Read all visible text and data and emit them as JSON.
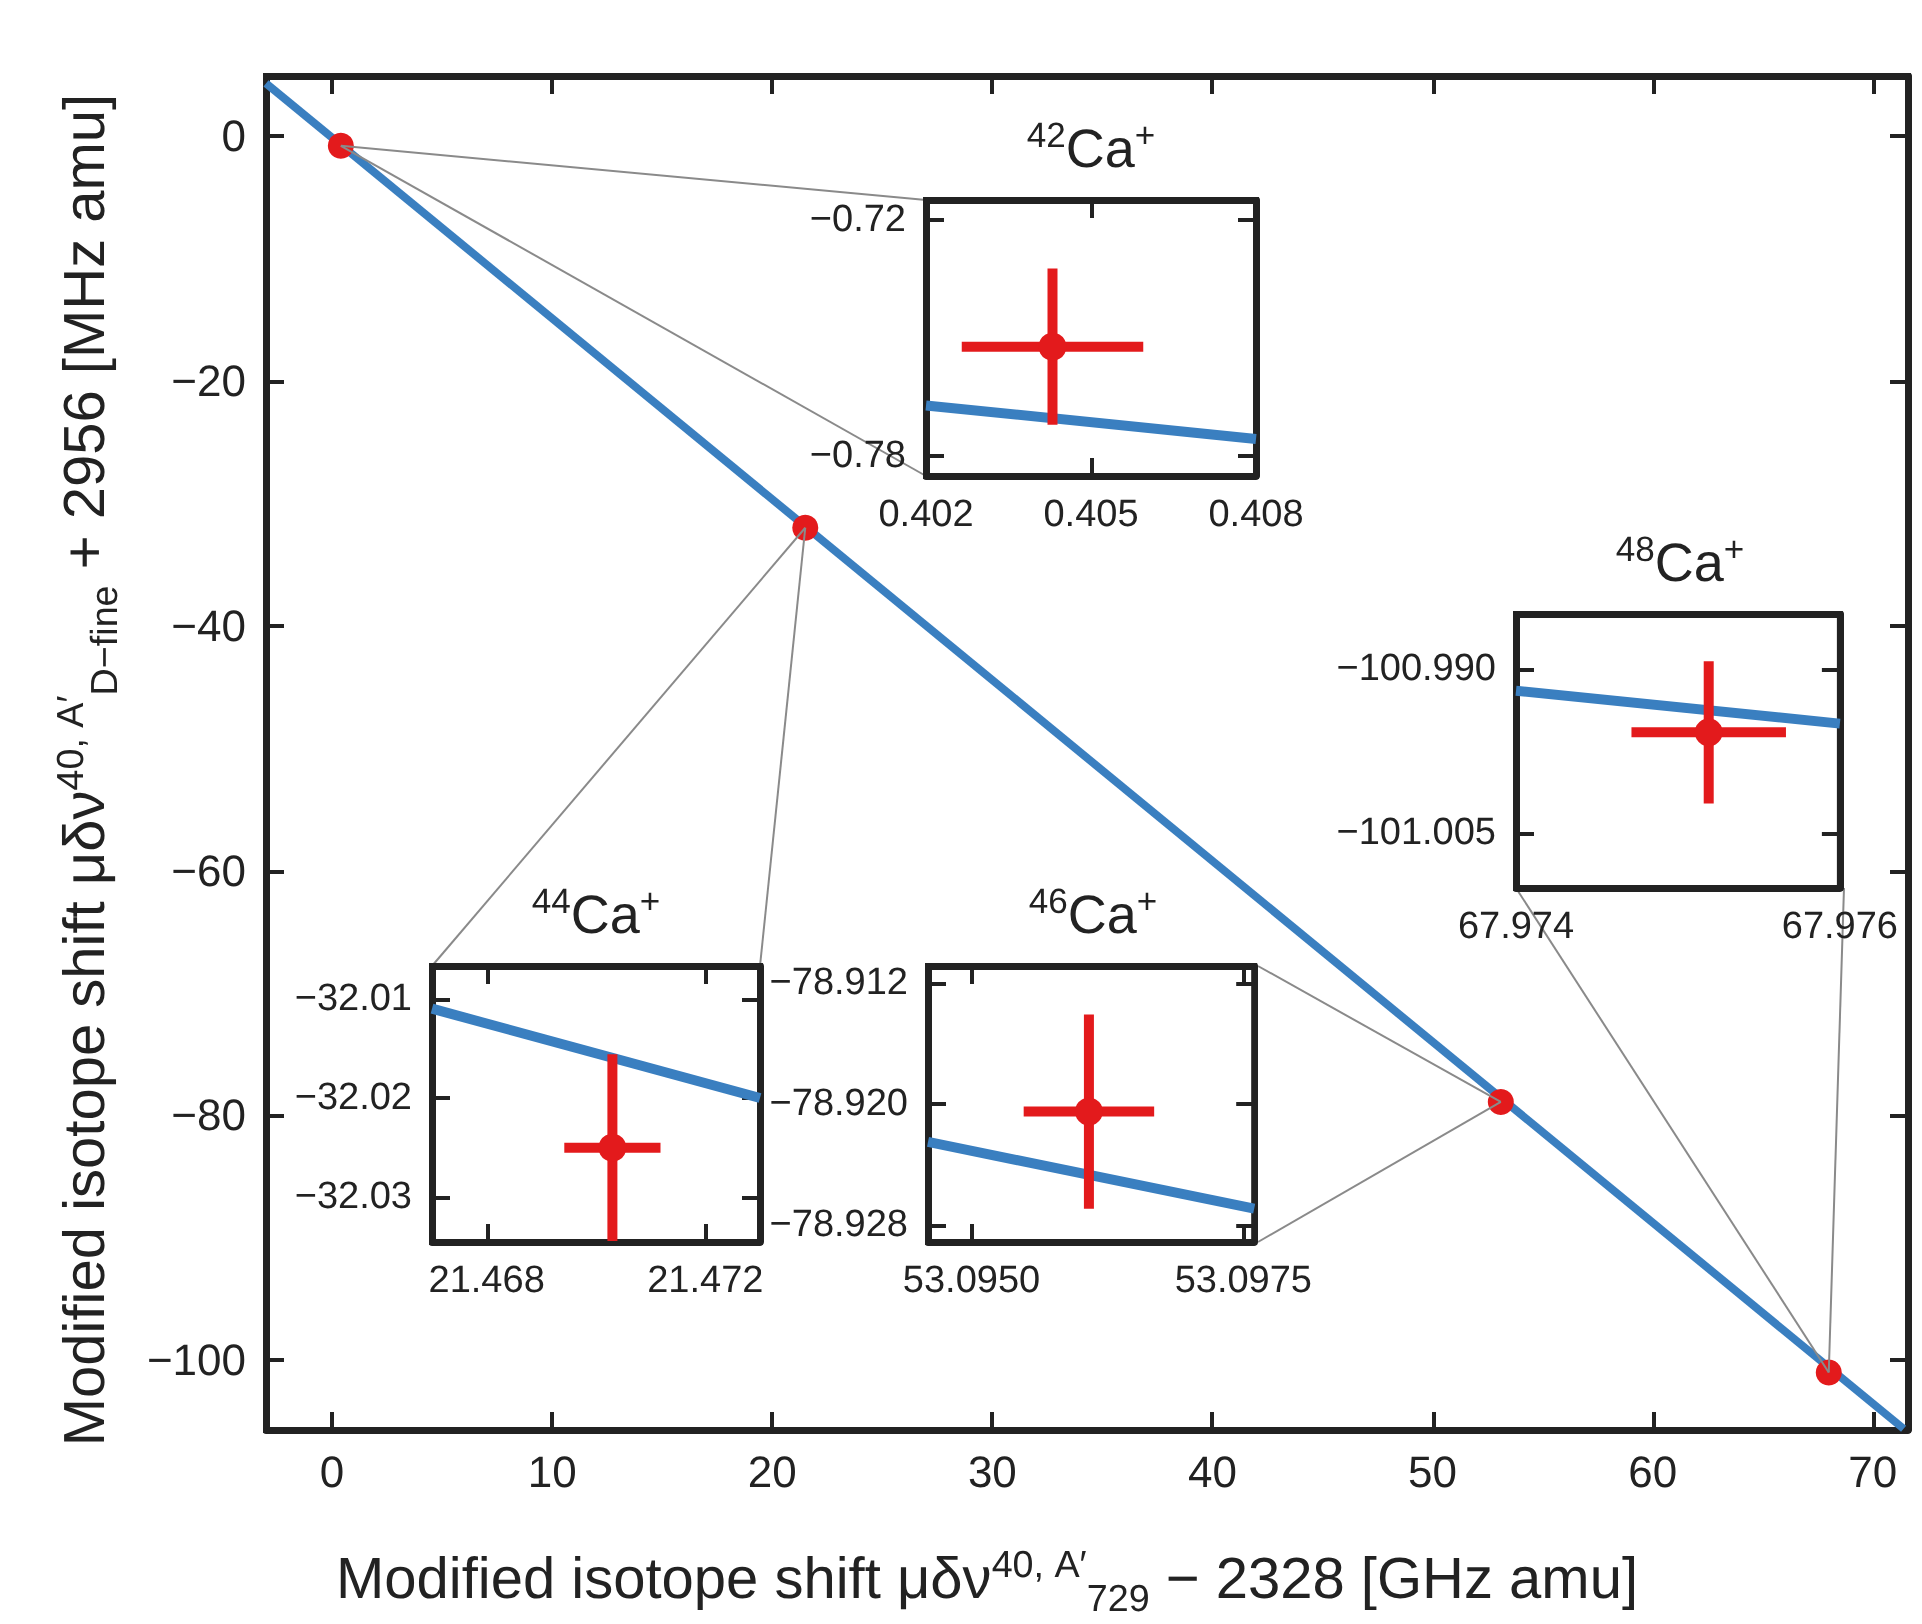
{
  "chart_data": [
    {
      "type": "scatter",
      "xlabel": "Modified isotope shift μδν$^{40, A′}$$_{729}$ − 2328 [GHz amu]",
      "ylabel": "Modified isotope shift μδν$^{40, A′}$$_{D−fine}$ + 2956 [MHz amu]",
      "xlim": [
        -3,
        71.6
      ],
      "ylim": [
        -105.7,
        4.9
      ],
      "xticks": [
        0,
        10,
        20,
        30,
        40,
        50,
        60,
        70
      ],
      "yticks": [
        -100,
        -80,
        -60,
        -40,
        -20,
        0
      ],
      "marker": "circle",
      "series": [
        {
          "type": "line",
          "color": "#3a7fc0",
          "marker": "none",
          "x": [
            -3,
            71.4
          ],
          "values": [
            4.3,
            -105.6
          ]
        },
        {
          "type": "scatter",
          "color": "#e31a1c",
          "x": [
            0.4,
            21.5,
            53.1,
            68.0
          ],
          "values": [
            -0.8,
            -32.0,
            -78.9,
            -101.0
          ]
        }
      ]
    },
    {
      "type": "scatter",
      "title": "$^{42}$Ca$^{+}$",
      "xlim": [
        0.402,
        0.408
      ],
      "ylim": [
        -0.785,
        -0.715
      ],
      "xticks": [
        0.402,
        0.405,
        0.408
      ],
      "yticks": [
        -0.78,
        -0.72
      ],
      "marker": "circle",
      "series": [
        {
          "type": "line",
          "color": "#3a7fc0",
          "marker": "none",
          "x": [
            0.402,
            0.408
          ],
          "values": [
            -0.7671,
            -0.7756
          ]
        },
        {
          "type": "scatter",
          "color": "#e31a1c",
          "x": [
            0.4043
          ],
          "values": [
            -0.7522
          ],
          "errors": [
            0.0198
          ],
          "xerrors": [
            0.00165
          ]
        }
      ]
    },
    {
      "type": "scatter",
      "title": "$^{44}$Ca$^{+}$",
      "xlim": [
        21.467,
        21.473
      ],
      "ylim": [
        -32.0345,
        -32.0067
      ],
      "xticks": [
        21.468,
        21.472
      ],
      "yticks": [
        -32.03,
        -32.02,
        -32.01
      ],
      "marker": "circle",
      "series": [
        {
          "type": "line",
          "color": "#3a7fc0",
          "marker": "none",
          "x": [
            21.467,
            21.473
          ],
          "values": [
            -32.011,
            -32.02
          ]
        },
        {
          "type": "scatter",
          "color": "#e31a1c",
          "x": [
            21.4703
          ],
          "values": [
            -32.025
          ],
          "errors": [
            0.0094
          ],
          "xerrors": [
            0.00088
          ]
        }
      ]
    },
    {
      "type": "scatter",
      "title": "$^{46}$Ca$^{+}$",
      "xlim": [
        53.0946,
        53.0976
      ],
      "ylim": [
        -78.9291,
        -78.9109
      ],
      "xticks": [
        {
          "value": 53.095,
          "label": "53.0950"
        },
        53.0975
      ],
      "yticks": [
        -78.928,
        {
          "value": -78.92,
          "label": "−78.920"
        },
        -78.912
      ],
      "marker": "circle",
      "series": [
        {
          "type": "line",
          "color": "#3a7fc0",
          "marker": "none",
          "x": [
            53.0946,
            53.0976
          ],
          "values": [
            -78.9225,
            -78.9269
          ]
        },
        {
          "type": "scatter",
          "color": "#e31a1c",
          "x": [
            53.09608
          ],
          "values": [
            -78.9205
          ],
          "errors": [
            0.0064
          ],
          "xerrors": [
            0.0006
          ]
        }
      ]
    },
    {
      "type": "scatter",
      "title": "$^{48}$Ca$^{+}$",
      "xlim": [
        67.974,
        67.976
      ],
      "ylim": [
        -101.01,
        -100.985
      ],
      "xticks": [
        67.974,
        67.976
      ],
      "yticks": [
        -101.005,
        {
          "value": -100.99,
          "label": "−100.990"
        }
      ],
      "marker": "circle",
      "series": [
        {
          "type": "line",
          "color": "#3a7fc0",
          "marker": "none",
          "x": [
            67.974,
            67.976
          ],
          "values": [
            -100.992,
            -100.995
          ]
        },
        {
          "type": "scatter",
          "color": "#e31a1c",
          "x": [
            67.97519
          ],
          "values": [
            -100.9958
          ],
          "errors": [
            0.0065
          ],
          "xerrors": [
            0.000477
          ]
        }
      ]
    }
  ]
}
